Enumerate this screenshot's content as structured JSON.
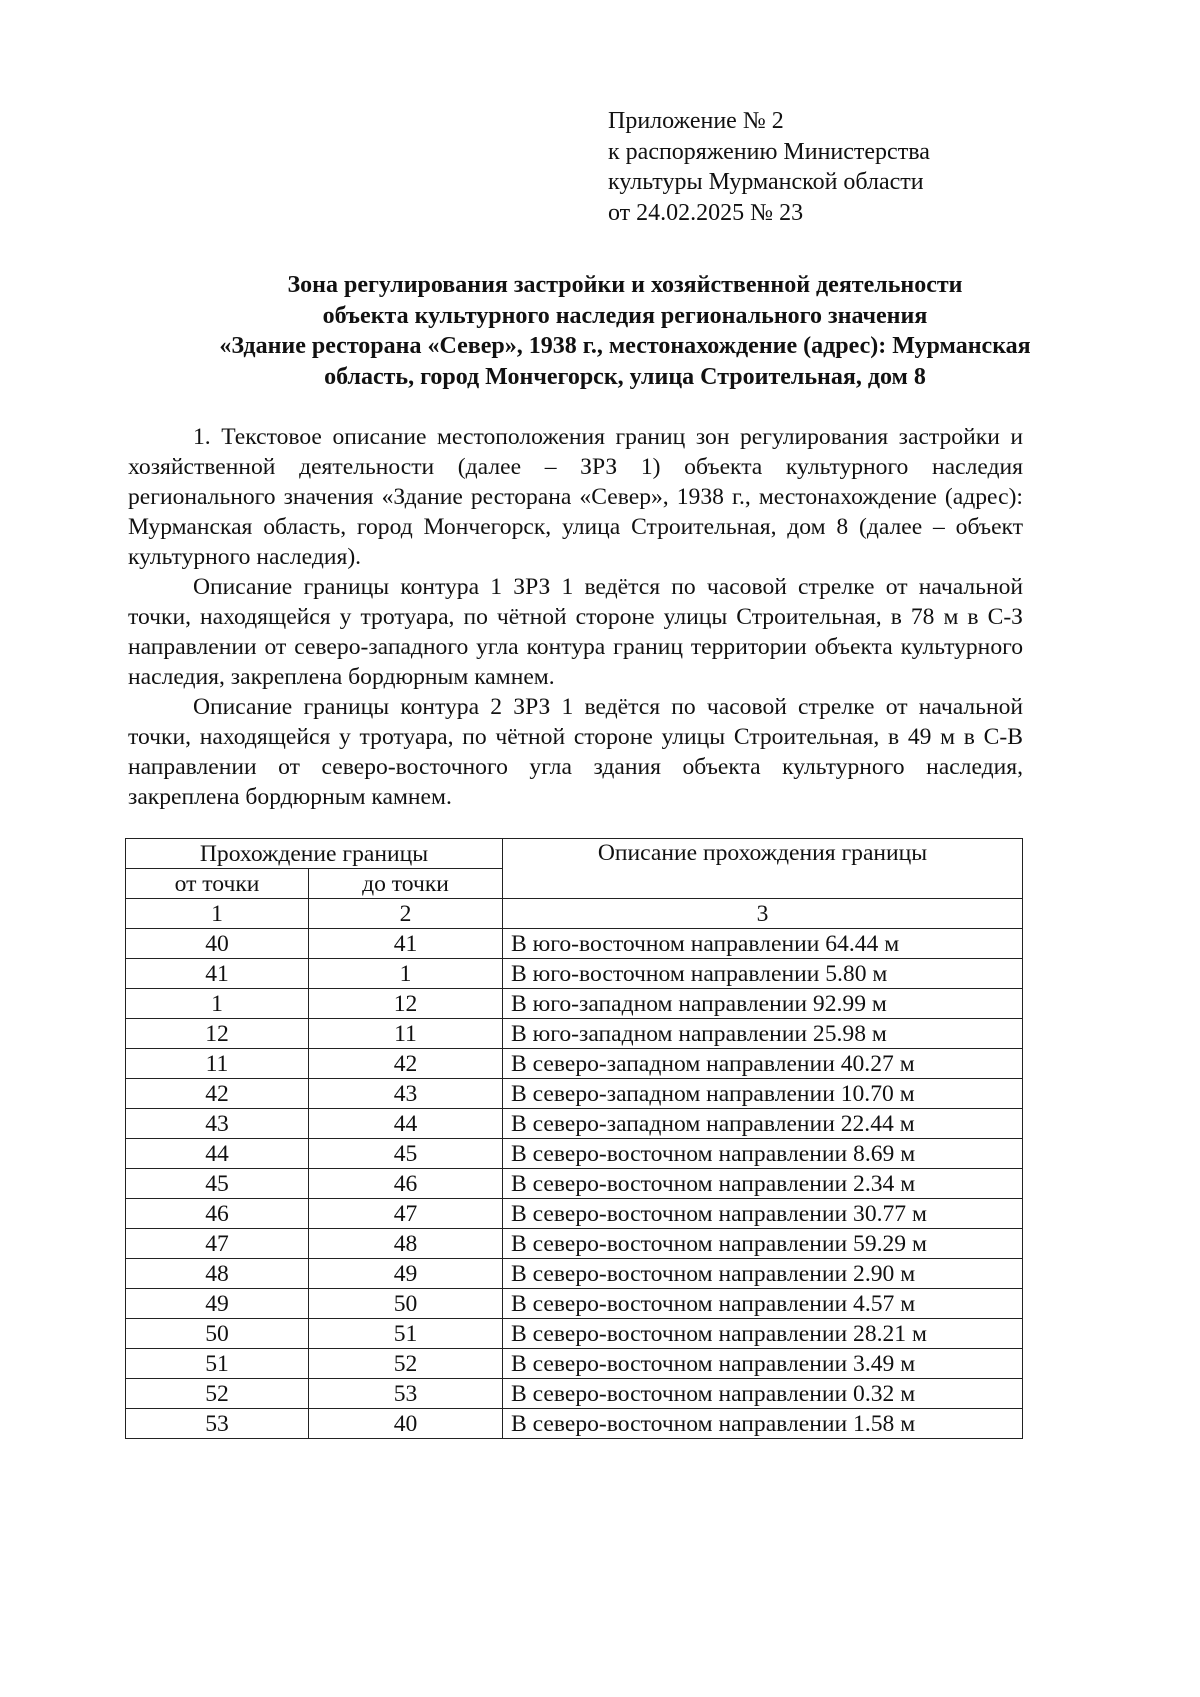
{
  "appendix": {
    "lines": [
      "Приложение № 2",
      "к распоряжению Министерства",
      "культуры Мурманской области",
      "от 24.02.2025  № 23"
    ]
  },
  "title": {
    "lines": [
      "Зона регулирования застройки и хозяйственной деятельности",
      "объекта культурного наследия регионального значения",
      "«Здание ресторана «Север», 1938 г., местонахождение (адрес): Мурманская",
      "область, город Мончегорск, улица Строительная, дом 8"
    ]
  },
  "paragraphs": [
    "1. Текстовое описание местоположения границ зон регулирования застройки и хозяйственной деятельности (далее – ЗРЗ 1) объекта культурного наследия регионального значения «Здание ресторана «Север», 1938 г., местонахождение (адрес): Мурманская область, город Мончегорск, улица Строительная, дом 8 (далее – объект культурного наследия).",
    "Описание границы контура 1 ЗРЗ 1 ведётся по часовой стрелке от начальной точки, находящейся у тротуара, по чётной стороне улицы Строительная, в 78 м в С-З направлении от северо-западного угла контура границ территории объекта культурного наследия, закреплена бордюрным камнем.",
    "Описание границы контура 2 ЗРЗ 1 ведётся по часовой стрелке от начальной точки, находящейся у тротуара, по чётной стороне улицы Строительная, в 49 м в С-В направлении от северо-восточного угла здания объекта культурного наследия, закреплена бордюрным камнем."
  ],
  "table": {
    "header": {
      "group": "Прохождение границы",
      "from": "от точки",
      "to": "до точки",
      "description": "Описание прохождения границы",
      "num1": "1",
      "num2": "2",
      "num3": "3"
    },
    "rows": [
      [
        "40",
        "41",
        "В юго-восточном направлении 64.44 м"
      ],
      [
        "41",
        "1",
        "В юго-восточном направлении 5.80 м"
      ],
      [
        "1",
        "12",
        "В юго-западном направлении 92.99 м"
      ],
      [
        "12",
        "11",
        "В юго-западном направлении 25.98 м"
      ],
      [
        "11",
        "42",
        "В северо-западном направлении 40.27 м"
      ],
      [
        "42",
        "43",
        "В северо-западном направлении 10.70 м"
      ],
      [
        "43",
        "44",
        "В северо-западном направлении 22.44 м"
      ],
      [
        "44",
        "45",
        "В северо-восточном направлении 8.69 м"
      ],
      [
        "45",
        "46",
        "В северо-восточном направлении 2.34 м"
      ],
      [
        "46",
        "47",
        "В северо-восточном направлении 30.77 м"
      ],
      [
        "47",
        "48",
        "В северо-восточном направлении 59.29 м"
      ],
      [
        "48",
        "49",
        "В северо-восточном направлении 2.90 м"
      ],
      [
        "49",
        "50",
        "В северо-восточном направлении 4.57 м"
      ],
      [
        "50",
        "51",
        "В северо-восточном направлении 28.21 м"
      ],
      [
        "51",
        "52",
        "В северо-восточном направлении 3.49 м"
      ],
      [
        "52",
        "53",
        "В северо-восточном направлении 0.32 м"
      ],
      [
        "53",
        "40",
        "В северо-восточном направлении 1.58 м"
      ]
    ]
  }
}
